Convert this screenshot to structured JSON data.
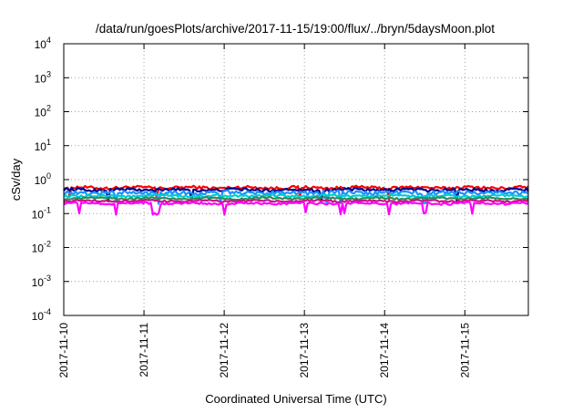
{
  "chart_data": {
    "type": "line",
    "title": "/data/run/goesPlots/archive/2017-11-15/19:00/flux/../bryn/5daysMoon.plot",
    "xlabel": "Coordinated Universal Time (UTC)",
    "ylabel": "cSv/day",
    "y_scale": "log",
    "ylim": [
      0.0001,
      10000
    ],
    "y_ticks": [
      {
        "value": 0.0001,
        "base": "10",
        "exp": "-4"
      },
      {
        "value": 0.001,
        "base": "10",
        "exp": "-3"
      },
      {
        "value": 0.01,
        "base": "10",
        "exp": "-2"
      },
      {
        "value": 0.1,
        "base": "10",
        "exp": "-1"
      },
      {
        "value": 1,
        "base": "10",
        "exp": "0"
      },
      {
        "value": 10,
        "base": "10",
        "exp": "1"
      },
      {
        "value": 100,
        "base": "10",
        "exp": "2"
      },
      {
        "value": 1000,
        "base": "10",
        "exp": "3"
      },
      {
        "value": 10000,
        "base": "10",
        "exp": "4"
      }
    ],
    "xlim": [
      "2017-11-10T00:00",
      "2017-11-15T19:00"
    ],
    "x_ticks": [
      "2017-11-10",
      "2017-11-11",
      "2017-11-12",
      "2017-11-13",
      "2017-11-14",
      "2017-11-15"
    ],
    "grid": true,
    "series": [
      {
        "color": "#ff0000",
        "base": 0.58,
        "noise": 0.1,
        "dips": [
          0.08,
          1.15,
          2.95,
          4.05
        ]
      },
      {
        "color": "#00008b",
        "base": 0.5,
        "noise": 0.1,
        "dips": [
          0.55,
          1.6,
          3.2,
          4.9
        ]
      },
      {
        "color": "#1e90ff",
        "base": 0.41,
        "noise": 0.14,
        "dips": [
          0.65,
          1.18,
          1.95,
          3.28,
          3.45,
          4.5
        ]
      },
      {
        "color": "#00ced1",
        "base": 0.33,
        "noise": 0.08,
        "dips": []
      },
      {
        "color": "#2e8b57",
        "base": 0.28,
        "noise": 0.06,
        "dips": []
      },
      {
        "color": "#c71585",
        "base": 0.235,
        "noise": 0.06,
        "dips": []
      },
      {
        "color": "#ff00ff",
        "base": 0.2,
        "noise": 0.07,
        "dips": [
          0.2,
          0.65,
          1.12,
          1.17,
          2.0,
          3.02,
          3.45,
          3.5,
          4.05,
          4.5,
          5.1
        ]
      }
    ]
  }
}
